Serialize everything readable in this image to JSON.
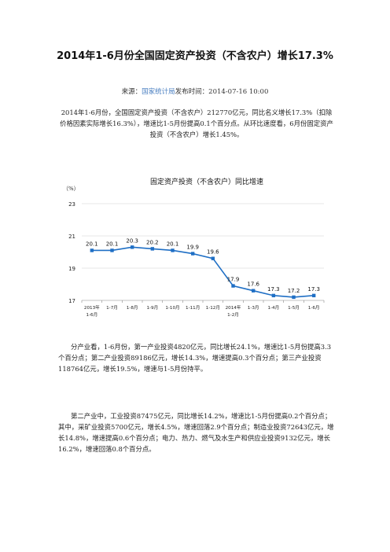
{
  "article": {
    "title": "2014年1-6月份全国固定资产投资（不含农户）增长17.3%",
    "source_label": "来源：",
    "source_org": "国家统计局",
    "source_suffix": "发布时间：2014-07-16  10:00",
    "paragraph1": "2014年1-6月份，全国固定资产投资（不含农户）212770亿元，同比名义增长17.3%（扣除价格因素实际增长16.3%），增速比1-5月份提高0.1个百分点。从环比速度看，6月份固定资产投资（不含农户）增长1.45%。",
    "paragraph2": "分产业看，1-6月份，第一产业投资4820亿元，同比增长24.1%，增速比1-5月份提高3.3个百分点；第二产业投资89186亿元，增长14.3%，增速提高0.3个百分点；第三产业投资118764亿元，增长19.5%，增速与1-5月份持平。",
    "paragraph3": "第二产业中，工业投资87475亿元，同比增长14.2%，增速比1-5月份提高0.2个百分点；其中，采矿业投资5700亿元，增长4.5%，增速回落2.9个百分点；制造业投资72643亿元，增长14.8%，增速提高0.6个百分点；电力、热力、燃气及水生产和供应业投资9132亿元，增长16.2%，增速回落0.8个百分点。"
  },
  "chart_data": {
    "type": "line",
    "title": "固定资产投资（不含农户）同比增速",
    "ylabel": "（%）",
    "xlabel": "",
    "ylim": [
      17,
      23
    ],
    "yticks": [
      17,
      19,
      21,
      23
    ],
    "grid": true,
    "categories": [
      [
        "2013年",
        "1-6月"
      ],
      [
        "1-7月"
      ],
      [
        "1-8月"
      ],
      [
        "1-9月"
      ],
      [
        "1-10月"
      ],
      [
        "1-11月"
      ],
      [
        "1-12月"
      ],
      [
        "2014年",
        "1-2月"
      ],
      [
        "1-3月"
      ],
      [
        "1-4月"
      ],
      [
        "1-5月"
      ],
      [
        "1-6月"
      ]
    ],
    "values": [
      20.1,
      20.1,
      20.3,
      20.2,
      20.1,
      19.9,
      19.6,
      17.9,
      17.6,
      17.3,
      17.2,
      17.3
    ],
    "labels": [
      "20.1",
      "20.1",
      "20.3",
      "20.2",
      "20.1",
      "19.9",
      "19.6",
      "17.9",
      "17.6",
      "17.3",
      "17.2",
      "17.3"
    ],
    "color": "#1f6fc5"
  }
}
